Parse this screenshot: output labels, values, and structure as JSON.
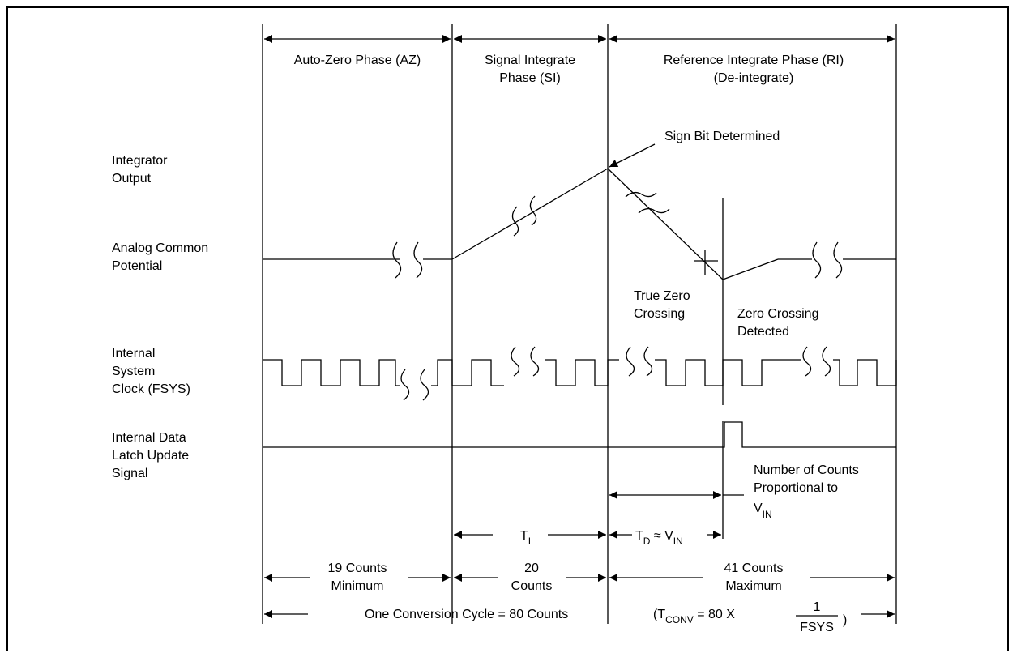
{
  "phases": {
    "az": "Auto-Zero Phase (AZ)",
    "si_line1": "Signal Integrate",
    "si_line2": "Phase (SI)",
    "ri_line1": "Reference Integrate Phase (RI)",
    "ri_line2": "(De-integrate)"
  },
  "signals": {
    "integrator_line1": "Integrator",
    "integrator_line2": "Output",
    "analog_line1": "Analog Common",
    "analog_line2": "Potential",
    "clock_line1": "Internal",
    "clock_line2": "System",
    "clock_line3": "Clock (FSYS)",
    "latch_line1": "Internal Data",
    "latch_line2": "Latch Update",
    "latch_line3": "Signal"
  },
  "annotations": {
    "sign_bit": "Sign Bit Determined",
    "true_zero_line1": "True Zero",
    "true_zero_line2": "Crossing",
    "zero_detected_line1": "Zero Crossing",
    "zero_detected_line2": "Detected",
    "num_counts_line1": "Number of Counts",
    "num_counts_line2": "Proportional to",
    "vin_main": "V",
    "vin_sub": "IN"
  },
  "timing": {
    "ti_main": "T",
    "ti_sub": "I",
    "td_main": "T",
    "td_sub": "D",
    "td_mid": " ≈ V",
    "td_sub2": "IN"
  },
  "counts": {
    "az_line1": "19 Counts",
    "az_line2": "Minimum",
    "si_line1": "20",
    "si_line2": "Counts",
    "ri_line1": "41 Counts",
    "ri_line2": "Maximum"
  },
  "cycle": {
    "label": "One Conversion Cycle = 80 Counts",
    "tconv_prefix": "(T",
    "tconv_sub": "CONV",
    "tconv_mid": " = 80 X",
    "frac_num": "1",
    "frac_den": "FSYS",
    "tconv_suffix": ")"
  }
}
